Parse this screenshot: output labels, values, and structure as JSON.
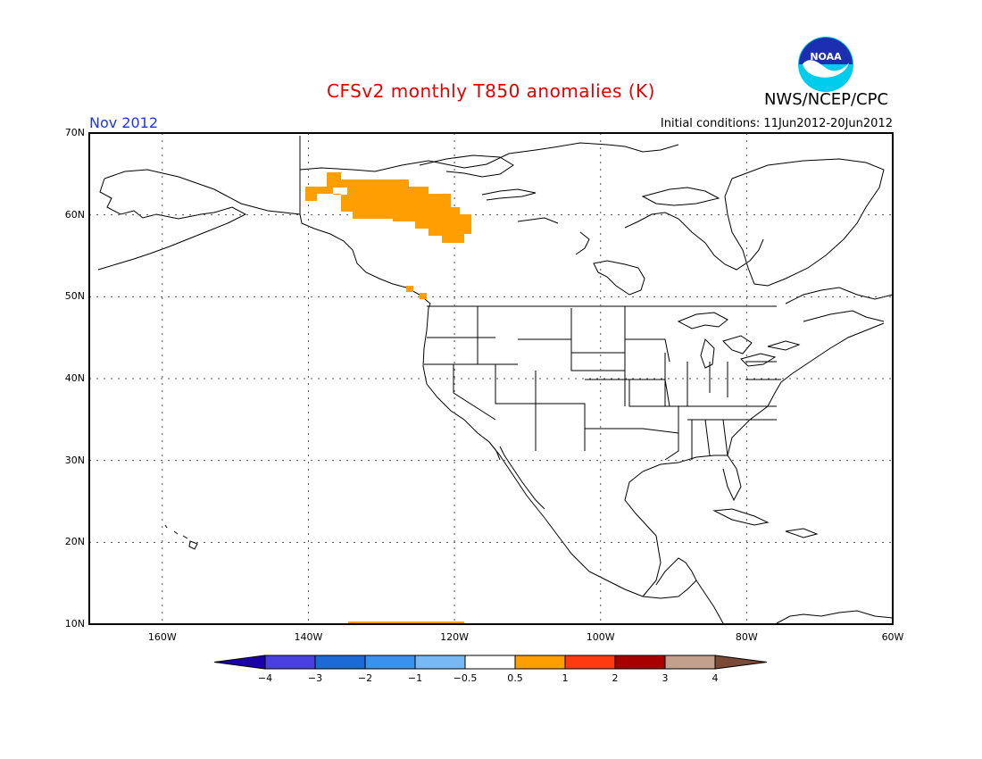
{
  "header": {
    "title": "CFSv2 monthly T850 anomalies (K)",
    "org": "NWS/NCEP/CPC",
    "month": "Nov 2012",
    "initial_conditions": "Initial conditions: 11Jun2012-20Jun2012",
    "logo_text": "NOAA"
  },
  "map": {
    "region": "North America",
    "projection": "lat-lon",
    "lon_range": [
      -170,
      -60
    ],
    "lat_range": [
      10,
      70
    ],
    "lat_labels": [
      "70N",
      "60N",
      "50N",
      "40N",
      "30N",
      "20N",
      "10N"
    ],
    "lon_labels": [
      "160W",
      "140W",
      "120W",
      "100W",
      "80W",
      "60W"
    ],
    "anomaly_color": "#ff9e00",
    "anomaly_regions": [
      {
        "name": "Yukon / NW Canada",
        "sign": "positive",
        "level": "0.5 to 1"
      },
      {
        "name": "Coastal BC spots",
        "sign": "positive",
        "level": "0.5 to 1"
      },
      {
        "name": "Southern edge strip",
        "sign": "positive",
        "level": "0.5 to 1"
      }
    ]
  },
  "colorbar": {
    "colors": [
      "#1a00a8",
      "#4a3fe0",
      "#1c6ad6",
      "#3b92ee",
      "#78b9f4",
      "#ffffff",
      "#ff9e00",
      "#ff3a10",
      "#a80000",
      "#c2a08c",
      "#7a4a36"
    ],
    "labels": [
      "-4",
      "-3",
      "-2",
      "-1",
      "-0.5",
      "0.5",
      "1",
      "2",
      "3",
      "4"
    ]
  }
}
